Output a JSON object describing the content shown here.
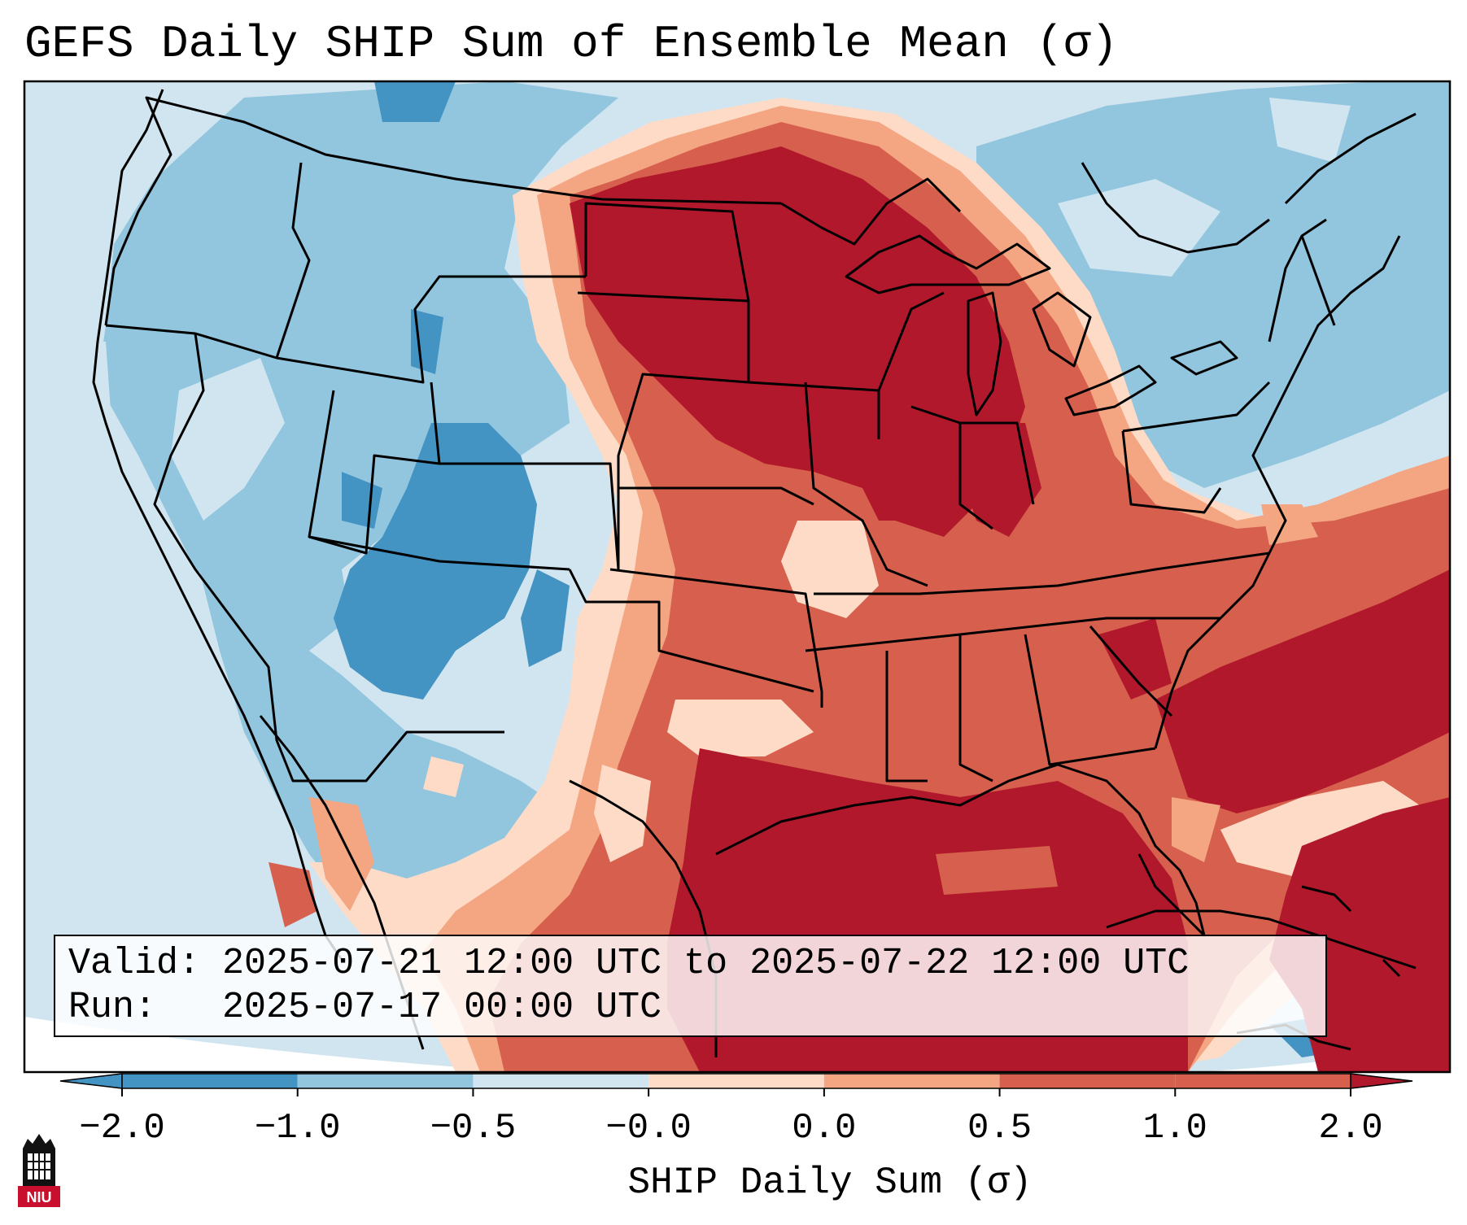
{
  "title": "GEFS Daily SHIP Sum of Ensemble Mean (σ)",
  "info": {
    "valid_label": "Valid:",
    "valid_value": "2025-07-21 12:00 UTC to 2025-07-22 12:00 UTC",
    "run_label": "Run:",
    "run_value": "2025-07-17 00:00 UTC"
  },
  "colorbar": {
    "label": "SHIP Daily Sum (σ)",
    "ticks": [
      "−2.0",
      "−1.0",
      "−0.5",
      "−0.0",
      "0.0",
      "0.5",
      "1.0",
      "2.0"
    ],
    "colors": [
      "#4393c3",
      "#92c5de",
      "#d1e5f0",
      "#f7f7f7",
      "#fddbc7",
      "#f4a582",
      "#d6604d",
      "#b2182b"
    ],
    "extend": "both"
  },
  "logo": {
    "text": "NIU"
  },
  "colors": {
    "dark_blue": "#4393c3",
    "mid_blue": "#92c5de",
    "light_blue": "#d1e5f0",
    "white": "#f7f7f7",
    "light_red": "#fddbc7",
    "mid_red": "#f4a582",
    "red": "#d6604d",
    "dark_red": "#b2182b"
  }
}
